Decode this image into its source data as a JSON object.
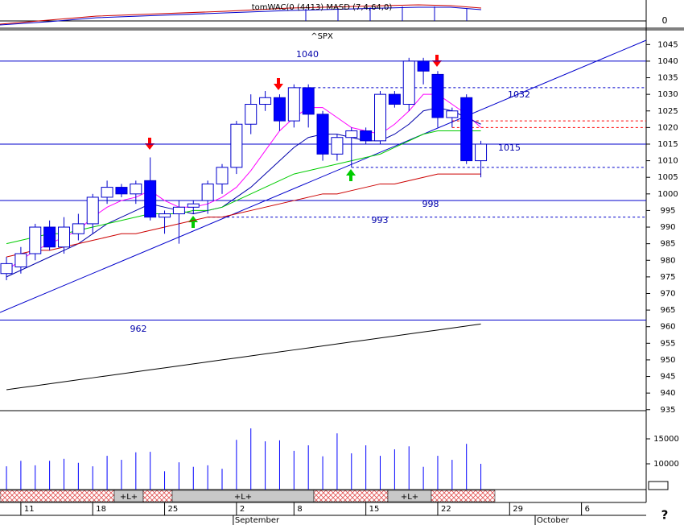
{
  "chart_data": {
    "type": "candlestick",
    "title": "^SPX",
    "indicator_label": "tomWAC(0 (4413) MASD (7,4,64,0)",
    "indicator_yticks": [
      0
    ],
    "xlim": [
      -0.45,
      44.5
    ],
    "xticks": [
      {
        "value": 1,
        "label": "11"
      },
      {
        "value": 6,
        "label": "18"
      },
      {
        "value": 11,
        "label": "25"
      },
      {
        "value": 16,
        "label": "2"
      },
      {
        "value": 20,
        "label": "8"
      },
      {
        "value": 25,
        "label": "15"
      },
      {
        "value": 30,
        "label": "22"
      },
      {
        "value": 35,
        "label": "29"
      },
      {
        "value": 40,
        "label": "6"
      }
    ],
    "months": [
      {
        "value": 16,
        "label": "September"
      },
      {
        "value": 37,
        "label": "October"
      }
    ],
    "ylim": [
      934.7,
      1049.2
    ],
    "yticks": [
      935,
      940,
      945,
      950,
      955,
      960,
      965,
      970,
      975,
      980,
      985,
      990,
      995,
      1000,
      1005,
      1010,
      1015,
      1020,
      1025,
      1030,
      1035,
      1040,
      1045
    ],
    "up_color": "#ffffff",
    "down_color": "#0000ff",
    "edge_color": "#0000cc",
    "open": [
      976,
      978,
      982,
      990,
      984,
      988,
      991,
      999,
      1002,
      1000,
      1004,
      993,
      994,
      996,
      998,
      1003,
      1008,
      1021,
      1027,
      1029,
      1022,
      1032,
      1024,
      1012,
      1017,
      1019,
      1016,
      1030,
      1027,
      1040,
      1036,
      1023,
      1029,
      1010
    ],
    "high": [
      981,
      984,
      991,
      992,
      993,
      994,
      1000,
      1004,
      1003,
      1004,
      1011,
      995,
      998,
      998,
      1004,
      1009,
      1022,
      1030,
      1031,
      1030,
      1033,
      1033,
      1025,
      1018,
      1020,
      1020,
      1031,
      1031,
      1041,
      1041,
      1037,
      1026,
      1030,
      1016
    ],
    "low": [
      974,
      976,
      980,
      983,
      982,
      986,
      988,
      997,
      999,
      997,
      992,
      988,
      985,
      994,
      994,
      1000,
      1006,
      1018,
      1025,
      1019,
      1020,
      1020,
      1010,
      1010,
      1008,
      1015,
      1015,
      1026,
      1025,
      1033,
      1020,
      1020,
      1009,
      1005
    ],
    "close": [
      979,
      982,
      990,
      984,
      990,
      991,
      999,
      1002,
      1000,
      1003,
      993,
      994,
      996,
      997,
      1003,
      1008,
      1021,
      1027,
      1029,
      1022,
      1032,
      1024,
      1012,
      1017,
      1019,
      1016,
      1030,
      1027,
      1040,
      1037,
      1023,
      1025,
      1010,
      1015
    ],
    "overlays": [
      {
        "color": "#ff00ff",
        "values": [
          977,
          980,
          983,
          985,
          987,
          989,
          993,
          996,
          998,
          999,
          1001,
          998,
          996,
          996,
          997,
          999,
          1002,
          1007,
          1013,
          1019,
          1023,
          1026,
          1026,
          1023,
          1020,
          1019,
          1018,
          1021,
          1025,
          1030,
          1030,
          1027,
          1024,
          1020
        ]
      },
      {
        "color": "#0000aa",
        "values": [
          975,
          977,
          979,
          981,
          983,
          985,
          988,
          991,
          993,
          995,
          997,
          996,
          995,
          994,
          995,
          996,
          999,
          1002,
          1006,
          1010,
          1014,
          1017,
          1018,
          1018,
          1017,
          1016,
          1016,
          1018,
          1021,
          1025,
          1026,
          1025,
          1023,
          1021
        ]
      },
      {
        "color": "#00cc00",
        "values": [
          985,
          986,
          987,
          988,
          988,
          989,
          990,
          991,
          992,
          993,
          994,
          994,
          994,
          995,
          995,
          996,
          998,
          1000,
          1002,
          1004,
          1006,
          1007,
          1008,
          1009,
          1010,
          1011,
          1012,
          1014,
          1016,
          1018,
          1019,
          1019,
          1019,
          1019
        ]
      },
      {
        "color": "#cc0000",
        "values": [
          981,
          982,
          983,
          983,
          984,
          985,
          986,
          987,
          988,
          988,
          989,
          990,
          991,
          992,
          993,
          993,
          994,
          995,
          996,
          997,
          998,
          999,
          1000,
          1000,
          1001,
          1002,
          1003,
          1003,
          1004,
          1005,
          1006,
          1006,
          1006,
          1006
        ]
      },
      {
        "color": "#000000",
        "values": [
          941.0,
          941.6,
          942.2,
          942.8,
          943.4,
          944.0,
          944.6,
          945.2,
          945.8,
          946.4,
          947.0,
          947.6,
          948.2,
          948.8,
          949.4,
          950.0,
          950.6,
          951.2,
          951.8,
          952.4,
          953.0,
          953.6,
          954.2,
          954.8,
          955.4,
          956.0,
          956.6,
          957.2,
          957.8,
          958.4,
          959.0,
          959.6,
          960.2,
          960.8
        ]
      }
    ],
    "levels": [
      {
        "value": 1040,
        "color": "#0000cc",
        "dashed": false,
        "start": -0.45
      },
      {
        "value": 1032,
        "color": "#0000cc",
        "dashed": true,
        "start": 20
      },
      {
        "value": 1022,
        "color": "#ff0000",
        "dashed": true,
        "start": 31
      },
      {
        "value": 1020,
        "color": "#ff0000",
        "dashed": true,
        "start": 31
      },
      {
        "value": 1015,
        "color": "#0000cc",
        "dashed": false,
        "start": -0.45
      },
      {
        "value": 1008,
        "color": "#0000cc",
        "dashed": true,
        "start": 24
      },
      {
        "value": 998,
        "color": "#0000cc",
        "dashed": false,
        "start": -0.45
      },
      {
        "value": 993,
        "color": "#0000cc",
        "dashed": true,
        "start": 14
      },
      {
        "value": 962,
        "color": "#0000cc",
        "dashed": false,
        "start": -0.45
      }
    ],
    "volume": [
      9500,
      10600,
      9700,
      10600,
      11000,
      10200,
      9500,
      11600,
      10800,
      12300,
      12400,
      8500,
      10300,
      9400,
      9700,
      9000,
      14800,
      17100,
      14500,
      14700,
      12600,
      13700,
      11500,
      16100,
      12100,
      13700,
      11600,
      12900,
      13500,
      9400,
      11600,
      10800,
      14000,
      10000
    ],
    "volume_color": "#0000ff",
    "volume_ylim": [
      4839,
      20645
    ],
    "volume_yticks": [
      10000,
      15000
    ],
    "markers": [
      "+L+",
      "+L+",
      "+L+"
    ]
  }
}
